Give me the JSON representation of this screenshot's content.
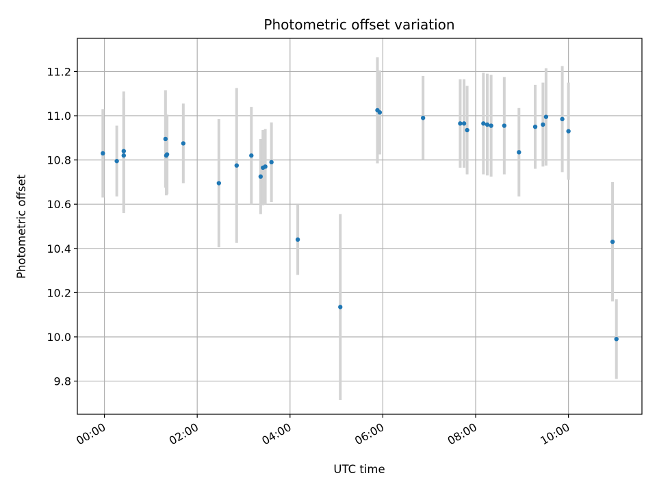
{
  "chart_data": {
    "type": "scatter",
    "title": "Photometric offset variation",
    "xlabel": "UTC time",
    "ylabel": "Photometric offset",
    "xlim_minutes": [
      -35,
      695
    ],
    "ylim": [
      9.65,
      11.35
    ],
    "x_ticks": [
      {
        "minutes": 0,
        "label": "00:00"
      },
      {
        "minutes": 120,
        "label": "02:00"
      },
      {
        "minutes": 240,
        "label": "04:00"
      },
      {
        "minutes": 360,
        "label": "06:00"
      },
      {
        "minutes": 480,
        "label": "08:00"
      },
      {
        "minutes": 600,
        "label": "10:00"
      }
    ],
    "y_ticks": [
      9.8,
      10.0,
      10.2,
      10.4,
      10.6,
      10.8,
      11.0,
      11.2
    ],
    "grid": true,
    "marker_color": "#1f77b4",
    "errorbar_color": "#d3d3d3",
    "points": [
      {
        "x": "23:58",
        "y": 10.83,
        "err": 0.2
      },
      {
        "x": "00:16",
        "y": 10.795,
        "err": 0.16
      },
      {
        "x": "00:25",
        "y": 10.84,
        "err": 0.27
      },
      {
        "x": "00:25",
        "y": 10.82,
        "err": 0.26
      },
      {
        "x": "01:19",
        "y": 10.895,
        "err": 0.22
      },
      {
        "x": "01:20",
        "y": 10.82,
        "err": 0.18
      },
      {
        "x": "01:21",
        "y": 10.825,
        "err": 0.18
      },
      {
        "x": "01:42",
        "y": 10.875,
        "err": 0.18
      },
      {
        "x": "02:28",
        "y": 10.695,
        "err": 0.29
      },
      {
        "x": "02:51",
        "y": 10.775,
        "err": 0.35
      },
      {
        "x": "03:10",
        "y": 10.82,
        "err": 0.22
      },
      {
        "x": "03:22",
        "y": 10.725,
        "err": 0.17
      },
      {
        "x": "03:25",
        "y": 10.765,
        "err": 0.17
      },
      {
        "x": "03:28",
        "y": 10.77,
        "err": 0.17
      },
      {
        "x": "03:36",
        "y": 10.79,
        "err": 0.18
      },
      {
        "x": "04:10",
        "y": 10.44,
        "err": 0.16
      },
      {
        "x": "05:05",
        "y": 10.135,
        "err": 0.42
      },
      {
        "x": "05:53",
        "y": 11.025,
        "err": 0.24
      },
      {
        "x": "05:56",
        "y": 11.015,
        "err": 0.19
      },
      {
        "x": "06:52",
        "y": 10.99,
        "err": 0.19
      },
      {
        "x": "07:40",
        "y": 10.965,
        "err": 0.2
      },
      {
        "x": "07:45",
        "y": 10.965,
        "err": 0.2
      },
      {
        "x": "07:49",
        "y": 10.935,
        "err": 0.2
      },
      {
        "x": "08:10",
        "y": 10.965,
        "err": 0.23
      },
      {
        "x": "08:15",
        "y": 10.96,
        "err": 0.23
      },
      {
        "x": "08:20",
        "y": 10.955,
        "err": 0.23
      },
      {
        "x": "08:37",
        "y": 10.955,
        "err": 0.22
      },
      {
        "x": "08:56",
        "y": 10.835,
        "err": 0.2
      },
      {
        "x": "09:17",
        "y": 10.95,
        "err": 0.19
      },
      {
        "x": "09:27",
        "y": 10.96,
        "err": 0.19
      },
      {
        "x": "09:31",
        "y": 10.995,
        "err": 0.22
      },
      {
        "x": "09:52",
        "y": 10.985,
        "err": 0.24
      },
      {
        "x": "10:00",
        "y": 10.93,
        "err": 0.22
      },
      {
        "x": "10:57",
        "y": 10.43,
        "err": 0.27
      },
      {
        "x": "11:02",
        "y": 9.99,
        "err": 0.18
      }
    ]
  }
}
